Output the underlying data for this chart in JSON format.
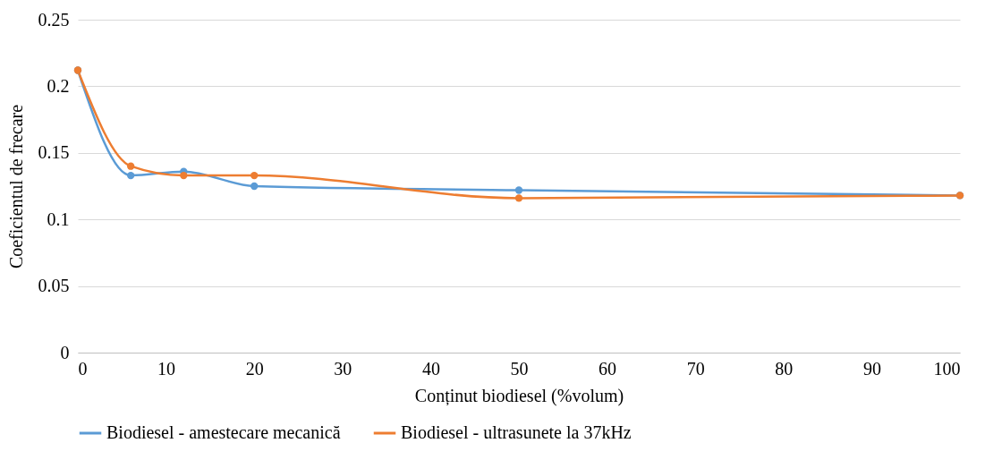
{
  "chart_data": {
    "type": "line",
    "xlabel": "Conținut biodiesel (%volum)",
    "ylabel": "Coeficientul de frecare",
    "x": [
      0,
      6,
      12,
      20,
      50,
      100
    ],
    "series": [
      {
        "name": "Biodiesel - amestecare mecanică",
        "color": "#5b9bd5",
        "values": [
          0.212,
          0.133,
          0.136,
          0.125,
          0.122,
          0.118
        ]
      },
      {
        "name": "Biodiesel - ultrasunete la 37kHz",
        "color": "#ed7d31",
        "values": [
          0.212,
          0.14,
          0.133,
          0.133,
          0.116,
          0.118
        ]
      }
    ],
    "xlim": [
      0,
      100
    ],
    "xticks": [
      0,
      10,
      20,
      30,
      40,
      50,
      60,
      70,
      80,
      90,
      100
    ],
    "ylim": [
      0,
      0.25
    ],
    "yticks": [
      {
        "value": 0,
        "label": "0"
      },
      0.05,
      {
        "value": 0.1,
        "label": "0.1"
      },
      0.15,
      {
        "value": 0.2,
        "label": "0.2"
      },
      0.25
    ],
    "grid": "y",
    "legend": "bottom",
    "marker": "circle",
    "line_style": "solid"
  }
}
